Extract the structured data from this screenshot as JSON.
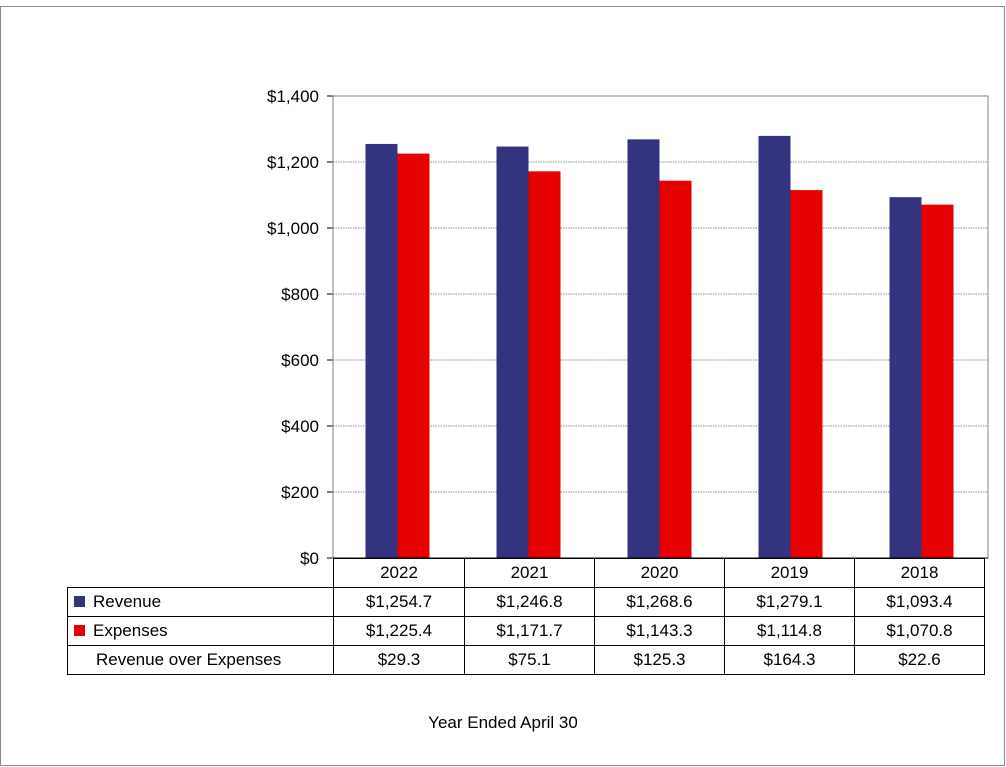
{
  "chart_data": {
    "type": "bar",
    "categories": [
      "2022",
      "2021",
      "2020",
      "2019",
      "2018"
    ],
    "series": [
      {
        "name": "Revenue",
        "color": "#333380",
        "values": [
          1254.7,
          1246.8,
          1268.6,
          1279.1,
          1093.4
        ]
      },
      {
        "name": "Expenses",
        "color": "#e60000",
        "values": [
          1225.4,
          1171.7,
          1143.3,
          1114.8,
          1070.8
        ]
      }
    ],
    "ylim": [
      0,
      1400
    ],
    "yticks": [
      0,
      200,
      400,
      600,
      800,
      1000,
      1200,
      1400
    ],
    "ytick_labels": [
      "$0",
      "$200",
      "$400",
      "$600",
      "$800",
      "$1,000",
      "$1,200",
      "$1,400"
    ],
    "grid": true,
    "xlabel": "Year Ended April 30",
    "table": {
      "rows": [
        {
          "label": "Revenue",
          "swatch": "#333380",
          "cells": [
            "$1,254.7",
            "$1,246.8",
            "$1,268.6",
            "$1,279.1",
            "$1,093.4"
          ]
        },
        {
          "label": "Expenses",
          "swatch": "#e60000",
          "cells": [
            "$1,225.4",
            "$1,171.7",
            "$1,143.3",
            "$1,114.8",
            "$1,070.8"
          ]
        },
        {
          "label": "Revenue over Expenses",
          "swatch": "",
          "cells": [
            "$29.3",
            "$75.1",
            "$125.3",
            "$164.3",
            "$22.6"
          ]
        }
      ]
    }
  }
}
